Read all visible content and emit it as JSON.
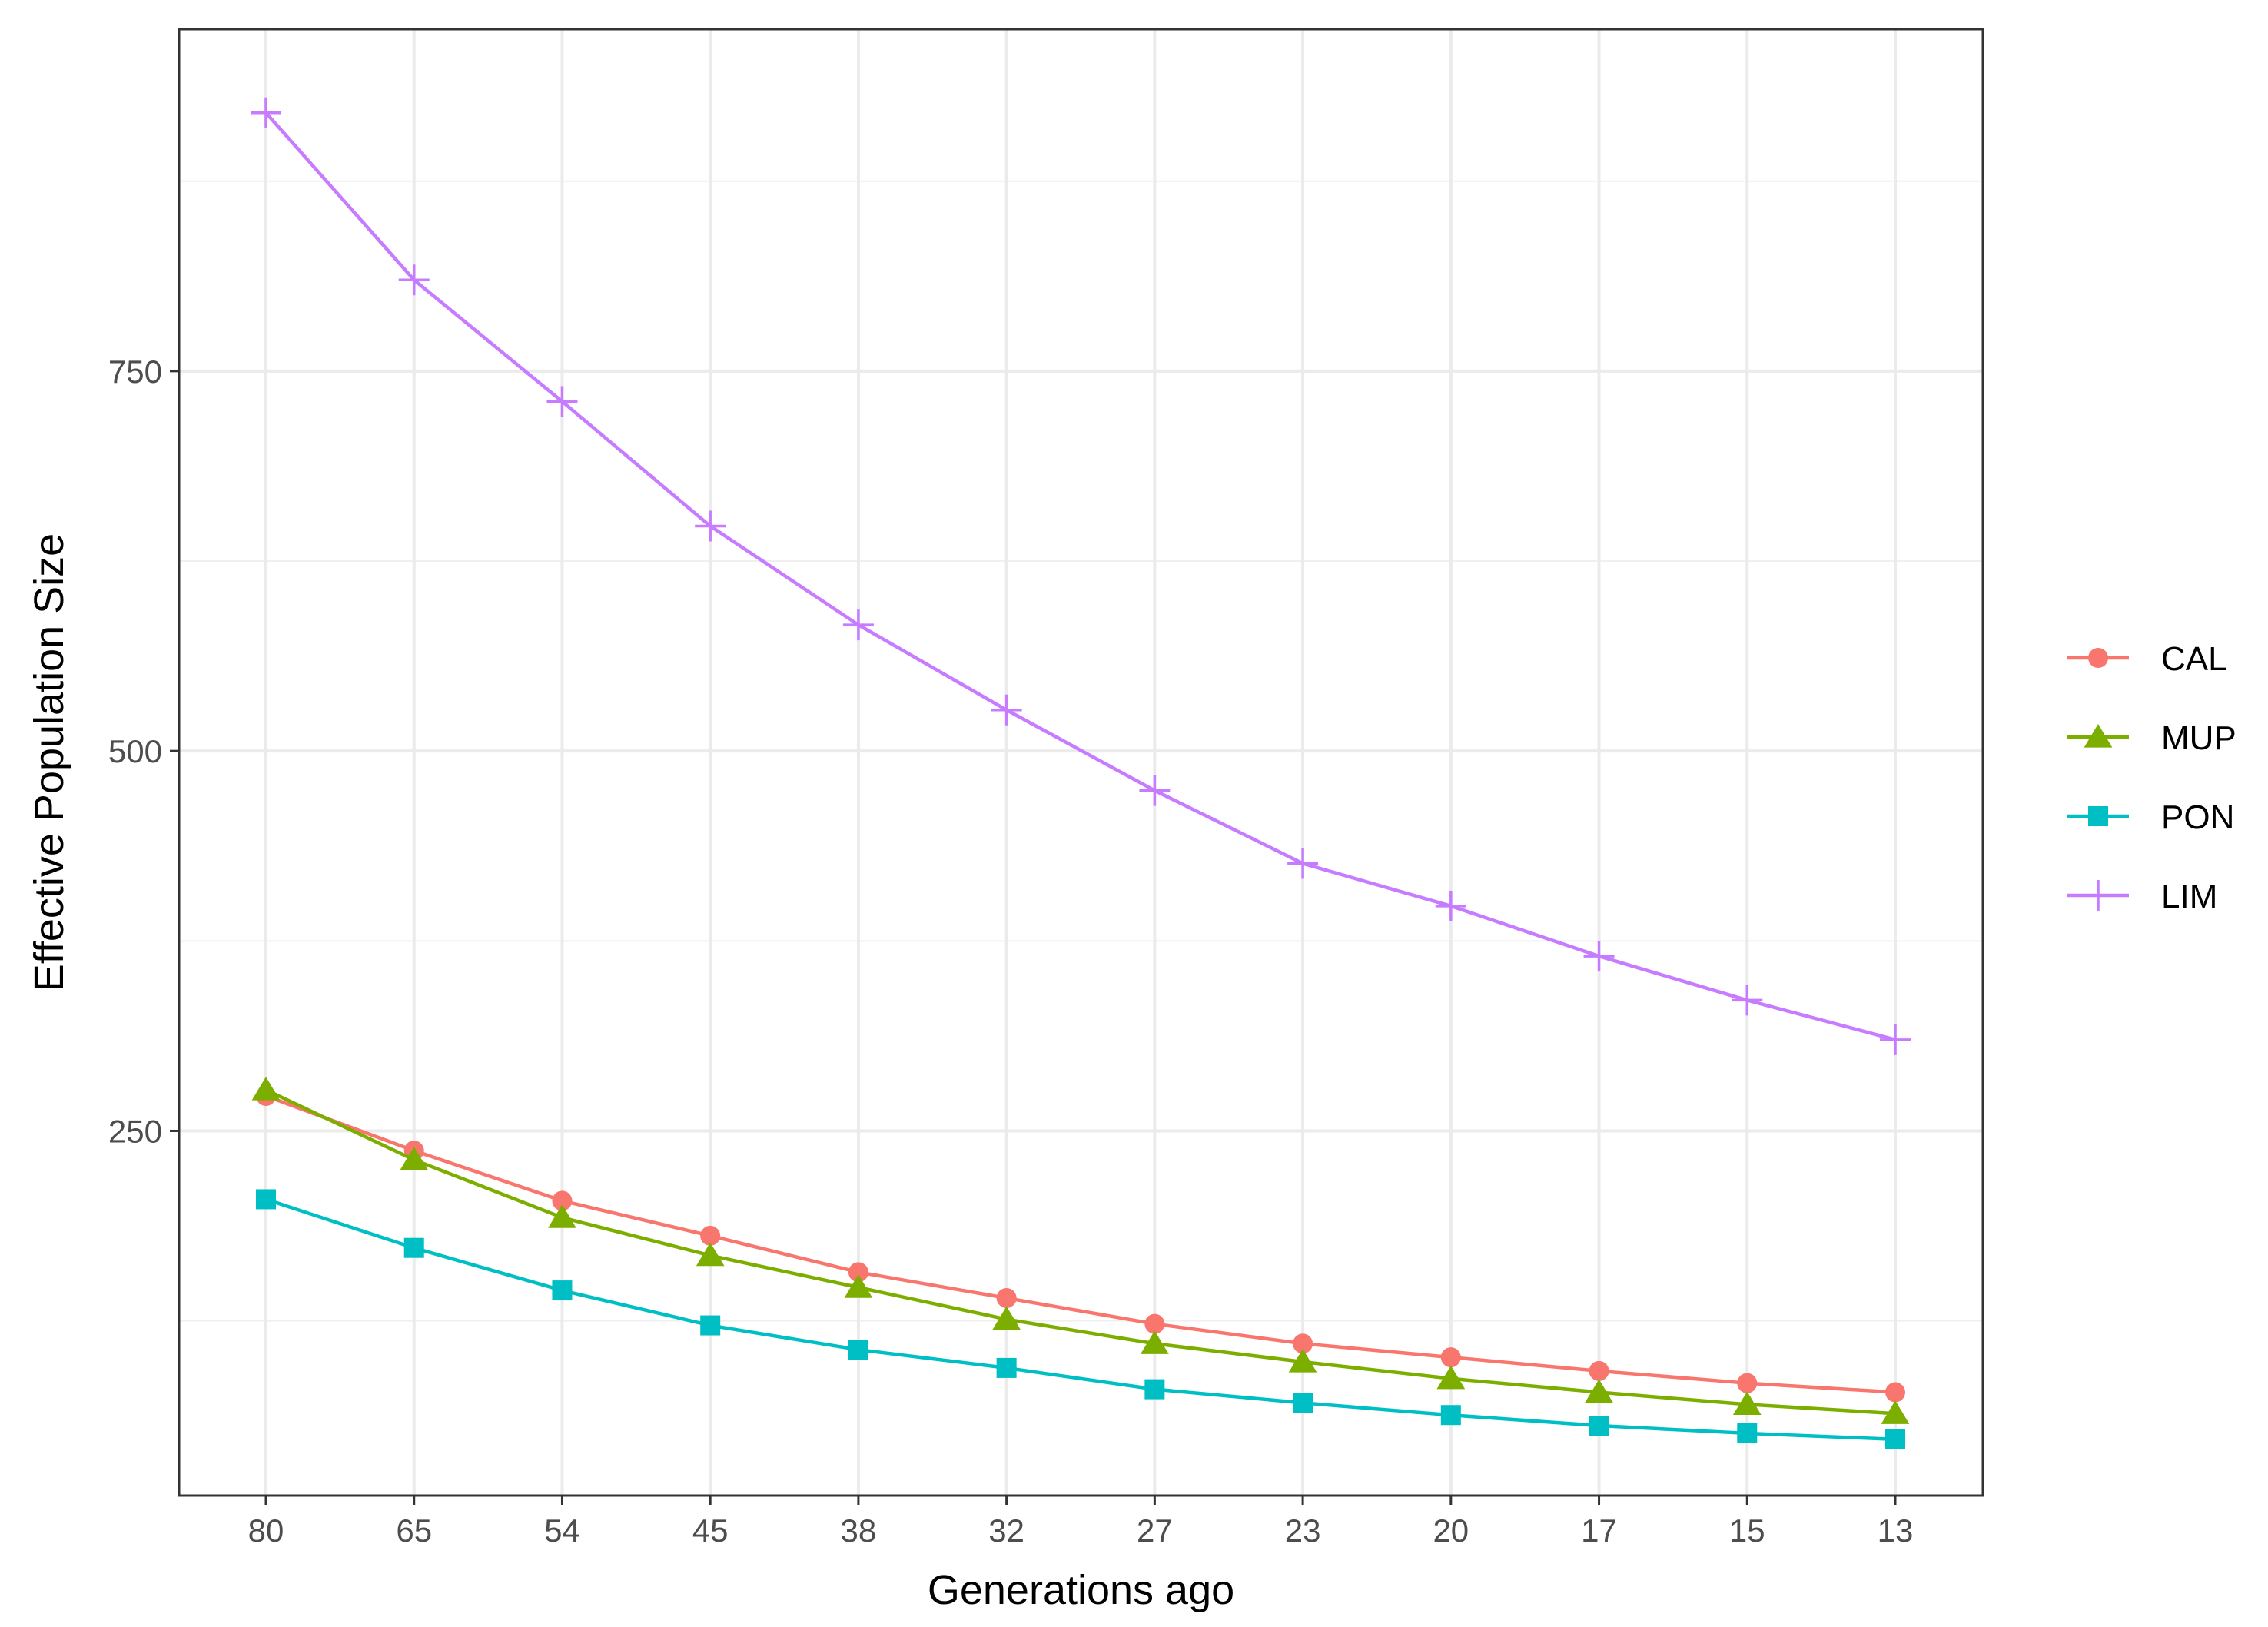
{
  "chart_data": {
    "type": "line",
    "title": "",
    "xlabel": "Generations ago",
    "ylabel": "Effective Population Size",
    "categories": [
      "80",
      "65",
      "54",
      "45",
      "38",
      "32",
      "27",
      "23",
      "20",
      "17",
      "15",
      "13"
    ],
    "ylim": [
      10,
      975
    ],
    "yticks": [
      250,
      500,
      750
    ],
    "grid": true,
    "legend_position": "right",
    "series": [
      {
        "name": "CAL",
        "color": "#F8766D",
        "marker": "circle",
        "values": [
          273,
          237,
          204,
          181,
          157,
          140,
          123,
          110,
          101,
          92,
          84,
          78
        ]
      },
      {
        "name": "MUP",
        "color": "#7CAE00",
        "marker": "triangle",
        "values": [
          277,
          231,
          193,
          168,
          147,
          126,
          110,
          98,
          87,
          78,
          70,
          64
        ]
      },
      {
        "name": "PON",
        "color": "#00BFC4",
        "marker": "square",
        "values": [
          205,
          173,
          145,
          122,
          106,
          94,
          80,
          71,
          63,
          56,
          51,
          47
        ]
      },
      {
        "name": "LIM",
        "color": "#C77CFF",
        "marker": "plus",
        "values": [
          920,
          810,
          730,
          648,
          583,
          527,
          474,
          426,
          398,
          365,
          336,
          310
        ]
      }
    ]
  }
}
